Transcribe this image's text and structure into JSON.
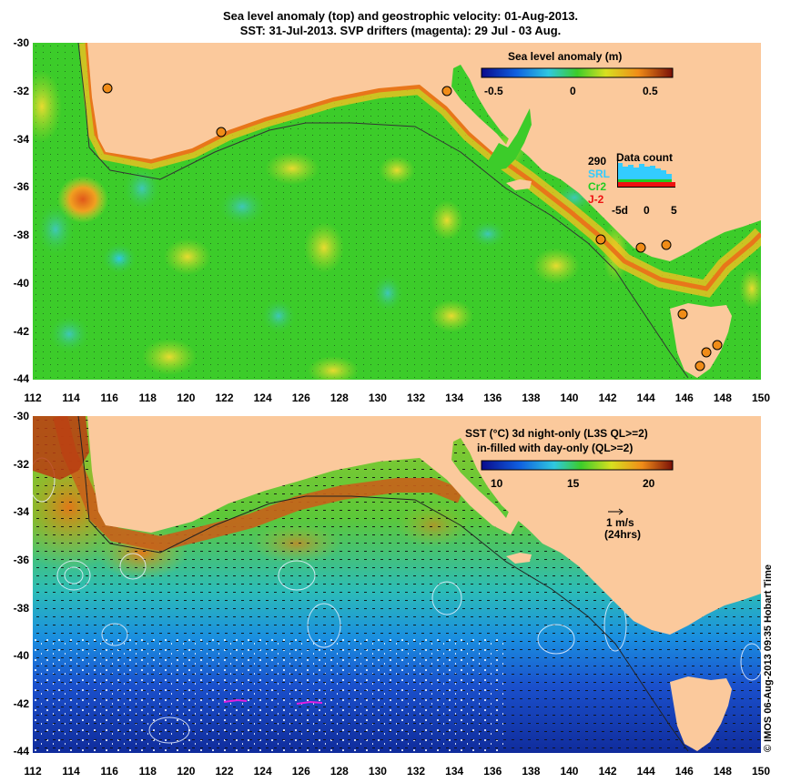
{
  "title_line1": "Sea level anomaly (top) and geostrophic velocity: 01-Aug-2013.",
  "title_line2": "SST: 31-Jul-2013. SVP drifters (magenta): 29 Jul - 03 Aug.",
  "top_panel": {
    "legend_title": "Sea level anomaly (m)",
    "colorbar_ticks": [
      "-0.5",
      "0",
      "0.5"
    ],
    "data_count": {
      "title": "Data count",
      "max_label": "290",
      "satellites": [
        {
          "label": "SRL",
          "color": "#33ccff"
        },
        {
          "label": "Cr2",
          "color": "#22cc22"
        },
        {
          "label": "J-2",
          "color": "#ee1111"
        }
      ],
      "x_ticks": [
        "-5d",
        "0",
        "5"
      ]
    }
  },
  "bottom_panel": {
    "legend_line1": "SST (°C)  3d night-only (L3S QL>=2)",
    "legend_line2": "in-filled with day-only (QL>=2)",
    "colorbar_ticks": [
      "10",
      "15",
      "20"
    ],
    "scale_label": "1 m/s",
    "scale_sub": "(24hrs)"
  },
  "axes": {
    "y_ticks": [
      "-30",
      "-32",
      "-34",
      "-36",
      "-38",
      "-40",
      "-42",
      "-44"
    ],
    "x_ticks": [
      "112",
      "114",
      "116",
      "118",
      "120",
      "122",
      "124",
      "126",
      "128",
      "130",
      "132",
      "134",
      "136",
      "138",
      "140",
      "142",
      "144",
      "146",
      "148",
      "150"
    ]
  },
  "colors": {
    "land": "#fbc99c",
    "sla_background": "#3ccc2a",
    "sst_warm": "#d66b1a",
    "sst_cold": "#1a3ec8"
  },
  "copyright": "© IMOS 06-Aug-2013 09:35 Hobart Time"
}
